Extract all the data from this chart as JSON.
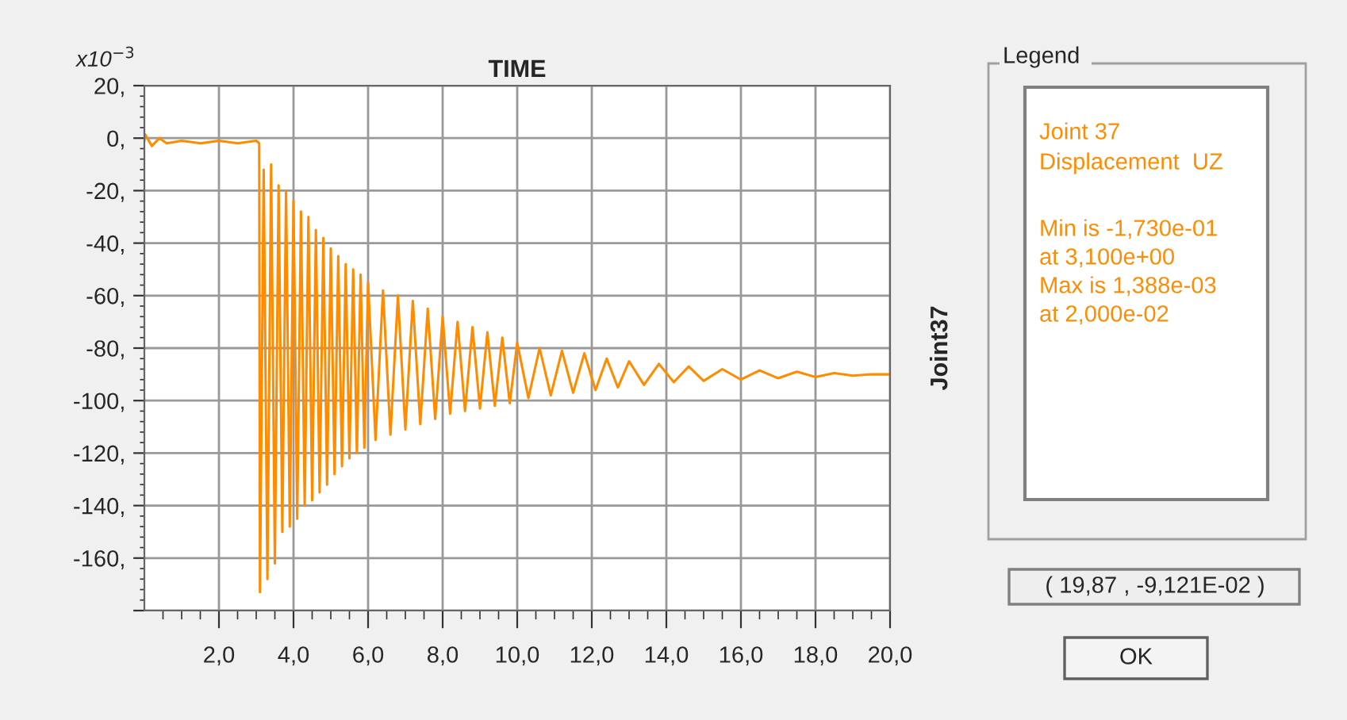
{
  "chart_data": {
    "type": "line",
    "xlabel": "TIME",
    "ylabel": "Joint37",
    "xlim": [
      0,
      20
    ],
    "ylim": [
      -180,
      20
    ],
    "xticks": [
      {
        "value": 2,
        "label": "2,0"
      },
      {
        "value": 4,
        "label": "4,0"
      },
      {
        "value": 6,
        "label": "6,0"
      },
      {
        "value": 8,
        "label": "8,0"
      },
      {
        "value": 10,
        "label": "10,0"
      },
      {
        "value": 12,
        "label": "12,0"
      },
      {
        "value": 14,
        "label": "14,0"
      },
      {
        "value": 16,
        "label": "16,0"
      },
      {
        "value": 18,
        "label": "18,0"
      },
      {
        "value": 20,
        "label": "20,0"
      }
    ],
    "yticks": [
      {
        "value": 20,
        "label": "20,"
      },
      {
        "value": 0,
        "label": "0,"
      },
      {
        "value": -20,
        "label": "-20,"
      },
      {
        "value": -40,
        "label": "-40,"
      },
      {
        "value": -60,
        "label": "-60,"
      },
      {
        "value": -80,
        "label": "-80,"
      },
      {
        "value": -100,
        "label": "-100,"
      },
      {
        "value": -120,
        "label": "-120,"
      },
      {
        "value": -140,
        "label": "-140,"
      },
      {
        "value": -160,
        "label": "-160,"
      },
      {
        "value": -180,
        "label": null
      }
    ],
    "grid": true,
    "legend": false,
    "marker": "none",
    "line_style": "solid",
    "series": [
      {
        "color": "#ff8c00",
        "x": [
          0,
          0.02,
          0.2,
          0.4,
          0.6,
          1.0,
          1.5,
          2.0,
          2.5,
          3.0,
          3.08,
          3.1,
          3.2,
          3.3,
          3.4,
          3.5,
          3.6,
          3.7,
          3.8,
          3.9,
          4.0,
          4.1,
          4.2,
          4.3,
          4.4,
          4.5,
          4.6,
          4.7,
          4.8,
          4.9,
          5.0,
          5.1,
          5.2,
          5.3,
          5.4,
          5.5,
          5.6,
          5.7,
          5.8,
          5.9,
          6.0,
          6.2,
          6.4,
          6.6,
          6.8,
          7.0,
          7.2,
          7.4,
          7.6,
          7.8,
          8.0,
          8.2,
          8.4,
          8.6,
          8.8,
          9.0,
          9.2,
          9.4,
          9.6,
          9.8,
          10.0,
          10.3,
          10.6,
          10.9,
          11.2,
          11.5,
          11.8,
          12.1,
          12.4,
          12.7,
          13.0,
          13.4,
          13.8,
          14.2,
          14.6,
          15.0,
          15.5,
          16.0,
          16.5,
          17.0,
          17.5,
          18.0,
          18.5,
          19.0,
          19.5,
          20.0
        ],
        "values": [
          -1,
          1.4,
          -3,
          0,
          -2,
          -1,
          -2,
          -1,
          -2,
          -1,
          -2,
          -173,
          -12,
          -168,
          -10,
          -162,
          -18,
          -150,
          -20,
          -148,
          -24,
          -145,
          -28,
          -140,
          -30,
          -138,
          -35,
          -135,
          -38,
          -132,
          -42,
          -128,
          -45,
          -125,
          -48,
          -122,
          -50,
          -120,
          -52,
          -118,
          -55,
          -115,
          -58,
          -113,
          -60,
          -111,
          -62,
          -109,
          -65,
          -107,
          -68,
          -105,
          -70,
          -104,
          -72,
          -103,
          -74,
          -102,
          -76,
          -101,
          -78,
          -99,
          -80,
          -98,
          -81,
          -97,
          -82,
          -96,
          -84,
          -95,
          -85,
          -94,
          -86,
          -93,
          -87,
          -92.5,
          -88,
          -92,
          -88.5,
          -91.5,
          -89,
          -91,
          -89.5,
          -90.5,
          -90,
          -90
        ]
      }
    ],
    "annotations": [
      "x10$^{−3}$",
      "Legend",
      "Joint 37",
      "Displacement  UZ",
      "Min is -1,730e-01",
      "at 3,100e+00",
      "Max is 1,388e-03",
      "at 2,000e-02",
      "( 19,87 , -9,121E-02 )",
      "OK"
    ]
  }
}
